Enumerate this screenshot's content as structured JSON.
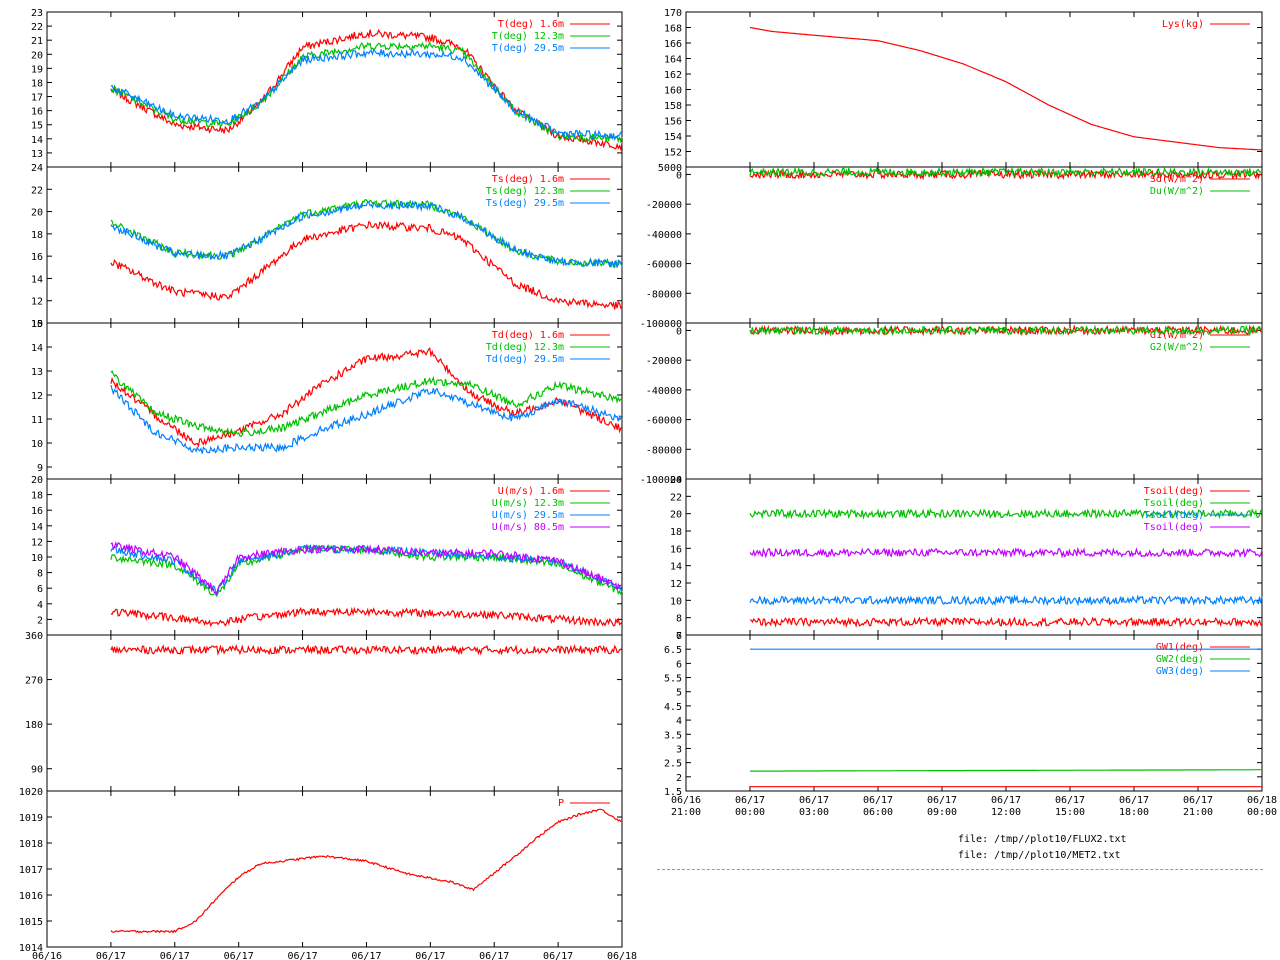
{
  "colors": {
    "red": "#ff0000",
    "green": "#00c000",
    "blue": "#0080ff",
    "purple": "#c000ff",
    "axis": "#000000",
    "dash": "#999999"
  },
  "time_ticks": [
    {
      "date": "06/16",
      "time": "21:00",
      "h": -3
    },
    {
      "date": "06/17",
      "time": "00:00",
      "h": 0
    },
    {
      "date": "06/17",
      "time": "03:00",
      "h": 3
    },
    {
      "date": "06/17",
      "time": "06:00",
      "h": 6
    },
    {
      "date": "06/17",
      "time": "09:00",
      "h": 9
    },
    {
      "date": "06/17",
      "time": "12:00",
      "h": 12
    },
    {
      "date": "06/17",
      "time": "15:00",
      "h": 15
    },
    {
      "date": "06/17",
      "time": "18:00",
      "h": 18
    },
    {
      "date": "06/17",
      "time": "21:00",
      "h": 21
    },
    {
      "date": "06/18",
      "time": "00:00",
      "h": 24
    }
  ],
  "footer": {
    "file1": "file: /tmp//plot10/FLUX2.txt",
    "file2": "file: /tmp//plot10/MET2.txt"
  },
  "chart_data": [
    {
      "id": "temperature",
      "type": "line",
      "column": "left",
      "xlim": [
        -3,
        24
      ],
      "ylim": [
        12,
        23
      ],
      "yticks": [
        13,
        14,
        15,
        16,
        17,
        18,
        19,
        20,
        21,
        22,
        23
      ],
      "series": [
        {
          "name": "T(deg)  1.6m",
          "color": "red",
          "x": [
            0,
            3,
            5.5,
            7,
            9,
            12,
            15,
            16.5,
            19,
            21,
            24
          ],
          "y": [
            17.5,
            15,
            14.6,
            16.5,
            20.5,
            21.5,
            21.2,
            20.5,
            16,
            14.2,
            13.5
          ]
        },
        {
          "name": "T(deg) 12.3m",
          "color": "green",
          "x": [
            0,
            3,
            5.5,
            7,
            9,
            12,
            15,
            16.5,
            19,
            21,
            24
          ],
          "y": [
            17.6,
            15.4,
            15,
            16.5,
            19.8,
            20.6,
            20.6,
            20.2,
            16,
            14.2,
            14
          ]
        },
        {
          "name": "T(deg) 29.5m",
          "color": "blue",
          "x": [
            0,
            3,
            5.5,
            7,
            9,
            12,
            15,
            16.5,
            19,
            21,
            24
          ],
          "y": [
            17.7,
            15.6,
            15.3,
            16.5,
            19.6,
            20.1,
            20,
            19.8,
            16,
            14.4,
            14.2
          ]
        }
      ]
    },
    {
      "id": "sonic-temperature",
      "type": "line",
      "column": "left",
      "xlim": [
        -3,
        24
      ],
      "ylim": [
        10,
        24
      ],
      "yticks": [
        10,
        12,
        14,
        16,
        18,
        20,
        22,
        24
      ],
      "series": [
        {
          "name": "Ts(deg)  1.6m",
          "color": "red",
          "x": [
            0,
            3,
            5.5,
            7,
            9,
            12,
            15,
            16.5,
            19,
            21,
            24
          ],
          "y": [
            15.5,
            12.8,
            12.3,
            14.5,
            17.5,
            18.8,
            18.5,
            17.5,
            13.5,
            12,
            11.5
          ]
        },
        {
          "name": "Ts(deg) 12.3m",
          "color": "green",
          "x": [
            0,
            3,
            5.5,
            7,
            9,
            12,
            15,
            16.5,
            19,
            21,
            24
          ],
          "y": [
            19,
            16.3,
            16,
            17.5,
            19.8,
            20.8,
            20.6,
            19.5,
            16.5,
            15.5,
            15.3
          ]
        },
        {
          "name": "Ts(deg) 29.5m",
          "color": "blue",
          "x": [
            0,
            3,
            5.5,
            7,
            9,
            12,
            15,
            16.5,
            19,
            21,
            24
          ],
          "y": [
            18.8,
            16.2,
            16,
            17.5,
            19.6,
            20.6,
            20.5,
            19.5,
            16.5,
            15.5,
            15.3
          ]
        }
      ]
    },
    {
      "id": "dewpoint",
      "type": "line",
      "column": "left",
      "xlim": [
        -3,
        24
      ],
      "ylim": [
        8.5,
        15
      ],
      "yticks": [
        9,
        10,
        11,
        12,
        13,
        14,
        15
      ],
      "series": [
        {
          "name": "Td(deg)  1.6m",
          "color": "red",
          "x": [
            0,
            2,
            4,
            6,
            8,
            10,
            12,
            15,
            17,
            19,
            21,
            24
          ],
          "y": [
            12.6,
            11.2,
            10,
            10.5,
            11.2,
            12.5,
            13.5,
            13.8,
            12,
            11.2,
            11.8,
            10.6
          ]
        },
        {
          "name": "Td(deg) 12.3m",
          "color": "green",
          "x": [
            0,
            2,
            4,
            6,
            8,
            10,
            12,
            15,
            17,
            19,
            21,
            24
          ],
          "y": [
            12.9,
            11.3,
            10.7,
            10.4,
            10.6,
            11.3,
            12,
            12.6,
            12.4,
            11.6,
            12.4,
            11.8
          ]
        },
        {
          "name": "Td(deg) 29.5m",
          "color": "blue",
          "x": [
            0,
            2,
            4,
            6,
            8,
            10,
            12,
            15,
            17,
            19,
            21,
            24
          ],
          "y": [
            12.3,
            10.5,
            9.7,
            9.8,
            9.8,
            10.6,
            11.2,
            12.2,
            11.6,
            11,
            11.8,
            11
          ]
        }
      ]
    },
    {
      "id": "wind-speed",
      "type": "line",
      "column": "left",
      "xlim": [
        -3,
        24
      ],
      "ylim": [
        0,
        20
      ],
      "yticks": [
        2,
        4,
        6,
        8,
        10,
        12,
        14,
        16,
        18,
        20
      ],
      "series": [
        {
          "name": "U(m/s)  1.6m",
          "color": "red",
          "x": [
            0,
            3,
            5,
            6,
            9,
            12,
            15,
            18,
            21,
            24
          ],
          "y": [
            3,
            2.2,
            1.5,
            2,
            3,
            3,
            2.8,
            2.6,
            2,
            1.5
          ]
        },
        {
          "name": "U(m/s) 12.3m",
          "color": "green",
          "x": [
            0,
            3,
            5,
            6,
            9,
            12,
            15,
            18,
            21,
            24
          ],
          "y": [
            10,
            9,
            5,
            9,
            11,
            11,
            10,
            10,
            9,
            5.5
          ]
        },
        {
          "name": "U(m/s) 29.5m",
          "color": "blue",
          "x": [
            0,
            3,
            5,
            6,
            9,
            12,
            15,
            18,
            21,
            24
          ],
          "y": [
            11,
            9.5,
            5.5,
            9.5,
            11,
            11,
            10.5,
            10,
            9.5,
            6
          ]
        },
        {
          "name": "U(m/s) 80.5m",
          "color": "purple",
          "x": [
            0,
            3,
            5,
            6,
            9,
            12,
            15,
            18,
            21,
            24
          ],
          "y": [
            11.5,
            10,
            5.5,
            10,
            11,
            11,
            10.5,
            10.5,
            9.5,
            6
          ]
        }
      ]
    },
    {
      "id": "wind-direction",
      "type": "line",
      "column": "left",
      "xlim": [
        -3,
        24
      ],
      "ylim": [
        45,
        360
      ],
      "yticks": [
        90,
        180,
        270,
        360
      ],
      "series": [
        {
          "name": "",
          "color": "red",
          "x": [
            0,
            6,
            12,
            18,
            24
          ],
          "y": [
            330,
            330,
            330,
            330,
            330
          ]
        }
      ]
    },
    {
      "id": "pressure",
      "type": "line",
      "column": "left",
      "xlim": [
        -3,
        24
      ],
      "ylim": [
        1014,
        1020
      ],
      "yticks": [
        1014,
        1015,
        1016,
        1017,
        1018,
        1019,
        1020
      ],
      "series": [
        {
          "name": "P",
          "color": "red",
          "x": [
            0,
            1.5,
            3,
            4,
            5,
            6,
            7,
            8,
            10,
            12,
            14,
            16,
            17,
            19,
            20,
            21,
            22,
            23,
            24
          ],
          "y": [
            1014.6,
            1014.6,
            1014.6,
            1015,
            1015.9,
            1016.7,
            1017.2,
            1017.3,
            1017.5,
            1017.3,
            1016.8,
            1016.5,
            1016.2,
            1017.5,
            1018.2,
            1018.8,
            1019.1,
            1019.3,
            1018.8
          ]
        }
      ]
    },
    {
      "id": "mass",
      "type": "line",
      "column": "right",
      "xlim": [
        -3,
        24
      ],
      "ylim": [
        150,
        170
      ],
      "yticks": [
        152,
        154,
        156,
        158,
        160,
        162,
        164,
        166,
        168,
        170
      ],
      "series": [
        {
          "name": "Lys(kg)",
          "color": "red",
          "x": [
            0,
            1,
            3,
            6,
            8,
            10,
            12,
            14,
            16,
            18,
            20,
            22,
            24
          ],
          "y": [
            168,
            167.5,
            167,
            166.3,
            165,
            163.3,
            161,
            158,
            155.5,
            153.9,
            153.2,
            152.5,
            152.2
          ]
        }
      ]
    },
    {
      "id": "radiation",
      "type": "line",
      "column": "right",
      "xlim": [
        -3,
        24
      ],
      "ylim": [
        -100000,
        5000
      ],
      "yticks": [
        -100000,
        -80000,
        -60000,
        -40000,
        -20000,
        0,
        5000
      ],
      "series": [
        {
          "name": "Sd(W/m^2)",
          "color": "red",
          "x": [
            0,
            24
          ],
          "y": [
            0,
            0
          ]
        },
        {
          "name": "Du(W/m^2)",
          "color": "green",
          "x": [
            0,
            24
          ],
          "y": [
            1500,
            1500
          ]
        }
      ]
    },
    {
      "id": "ground-flux",
      "type": "line",
      "column": "right",
      "xlim": [
        -3,
        24
      ],
      "ylim": [
        -100000,
        5000
      ],
      "yticks": [
        -100000,
        -80000,
        -60000,
        -40000,
        -20000,
        0
      ],
      "series": [
        {
          "name": "G1(W/m^2)",
          "color": "red",
          "x": [
            0,
            24
          ],
          "y": [
            0,
            0
          ]
        },
        {
          "name": "G2(W/m^2)",
          "color": "green",
          "x": [
            0,
            24
          ],
          "y": [
            0,
            0
          ]
        }
      ]
    },
    {
      "id": "soil-temperature",
      "type": "line",
      "column": "right",
      "xlim": [
        -3,
        24
      ],
      "ylim": [
        6,
        24
      ],
      "yticks": [
        6,
        8,
        10,
        12,
        14,
        16,
        18,
        20,
        22,
        24
      ],
      "series": [
        {
          "name": "Tsoil(deg)",
          "color": "red",
          "x": [
            0,
            24
          ],
          "y": [
            7.5,
            7.5
          ]
        },
        {
          "name": "Tsoil(deg)",
          "color": "green",
          "x": [
            0,
            24
          ],
          "y": [
            20,
            20
          ]
        },
        {
          "name": "Tsoil(deg)",
          "color": "blue",
          "x": [
            0,
            24
          ],
          "y": [
            10,
            10
          ]
        },
        {
          "name": "Tsoil(deg)",
          "color": "purple",
          "x": [
            0,
            24
          ],
          "y": [
            15.5,
            15.5
          ]
        }
      ]
    },
    {
      "id": "ground-water",
      "type": "line",
      "column": "right",
      "xlim": [
        -3,
        24
      ],
      "ylim": [
        1.5,
        7
      ],
      "yticks": [
        1.5,
        2,
        2.5,
        3,
        3.5,
        4,
        4.5,
        5,
        5.5,
        6,
        6.5,
        7
      ],
      "series": [
        {
          "name": "GW1(deg)",
          "color": "red",
          "x": [
            0,
            24
          ],
          "y": [
            1.65,
            1.65
          ]
        },
        {
          "name": "GW2(deg)",
          "color": "green",
          "x": [
            0,
            24
          ],
          "y": [
            2.2,
            2.25
          ]
        },
        {
          "name": "GW3(deg)",
          "color": "blue",
          "x": [
            0,
            24
          ],
          "y": [
            6.5,
            6.5
          ]
        }
      ]
    }
  ]
}
